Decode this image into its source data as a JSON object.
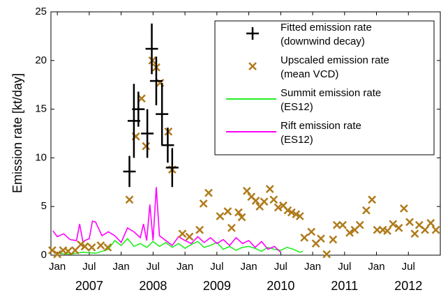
{
  "chart_data": {
    "type": "emission-timeseries",
    "ylabel": "Emission rate [kt/day]",
    "xlim": [
      2006.9,
      2013.0
    ],
    "ylim": [
      0,
      25
    ],
    "yticks": [
      0,
      5,
      10,
      15,
      20,
      25
    ],
    "xticks": [
      {
        "value": 2007.0,
        "label": "Jan"
      },
      {
        "value": 2007.5,
        "label": "Jul"
      },
      {
        "value": 2008.0,
        "label": "Jan"
      },
      {
        "value": 2008.5,
        "label": "Jul"
      },
      {
        "value": 2009.0,
        "label": "Jan"
      },
      {
        "value": 2009.5,
        "label": "Jul"
      },
      {
        "value": 2010.0,
        "label": "Jan"
      },
      {
        "value": 2010.5,
        "label": "Jul"
      },
      {
        "value": 2011.0,
        "label": "Jan"
      },
      {
        "value": 2011.5,
        "label": "Jul"
      },
      {
        "value": 2012.0,
        "label": "Jan"
      },
      {
        "value": 2012.5,
        "label": "Jul"
      }
    ],
    "year_labels": [
      {
        "value": 2007.5,
        "label": "2007"
      },
      {
        "value": 2008.5,
        "label": "2008"
      },
      {
        "value": 2009.5,
        "label": "2009"
      },
      {
        "value": 2010.5,
        "label": "2010"
      },
      {
        "value": 2011.5,
        "label": "2011"
      },
      {
        "value": 2012.5,
        "label": "2012"
      }
    ],
    "series": [
      {
        "name": "Fitted emission rate (downwind decay)",
        "kind": "errorbar",
        "color": "#000000",
        "x": [
          2008.13,
          2008.2,
          2008.27,
          2008.41,
          2008.48,
          2008.55,
          2008.64,
          2008.73,
          2008.8
        ],
        "values": [
          8.6,
          13.8,
          15.0,
          12.5,
          21.2,
          17.9,
          14.5,
          11.3,
          9.0
        ],
        "errors": [
          1.6,
          3.8,
          1.8,
          2.5,
          2.6,
          2.5,
          3.2,
          1.8,
          2.0
        ]
      },
      {
        "name": "Upscaled emission rate (mean VCD)",
        "kind": "cross",
        "color": "#b07a1a",
        "x": [
          2006.92,
          2007.0,
          2007.09,
          2007.17,
          2007.28,
          2007.37,
          2007.43,
          2007.54,
          2007.68,
          2007.79,
          2008.13,
          2008.23,
          2008.32,
          2008.39,
          2008.49,
          2008.55,
          2008.61,
          2008.74,
          2008.8,
          2008.96,
          2009.07,
          2009.23,
          2009.29,
          2009.37,
          2009.55,
          2009.67,
          2009.73,
          2009.84,
          2009.89,
          2009.97,
          2010.04,
          2010.11,
          2010.17,
          2010.24,
          2010.33,
          2010.39,
          2010.46,
          2010.54,
          2010.61,
          2010.67,
          2010.74,
          2010.8,
          2010.87,
          2010.98,
          2011.05,
          2011.13,
          2011.22,
          2011.32,
          2011.38,
          2011.47,
          2011.58,
          2011.66,
          2011.74,
          2011.84,
          2011.93,
          2012.01,
          2012.1,
          2012.17,
          2012.26,
          2012.35,
          2012.43,
          2012.52,
          2012.6,
          2012.67,
          2012.76,
          2012.85,
          2012.93
        ],
        "values": [
          0.5,
          0.1,
          0.5,
          0.4,
          0.5,
          1.1,
          0.9,
          0.8,
          1.0,
          0.8,
          5.7,
          12.2,
          16.1,
          11.2,
          20.0,
          19.3,
          17.7,
          12.7,
          8.8,
          2.2,
          1.9,
          2.6,
          5.3,
          6.4,
          4.0,
          4.5,
          2.8,
          4.4,
          3.9,
          6.6,
          6.0,
          5.6,
          5.0,
          5.5,
          6.8,
          5.7,
          4.9,
          5.1,
          4.6,
          4.4,
          4.2,
          4.0,
          1.8,
          2.4,
          1.2,
          1.7,
          0.1,
          1.6,
          3.1,
          3.1,
          2.3,
          2.6,
          3.1,
          4.6,
          5.7,
          2.6,
          2.6,
          2.5,
          3.2,
          2.8,
          4.8,
          3.4,
          2.2,
          3.1,
          2.6,
          3.3,
          2.6
        ]
      },
      {
        "name": "Summit emission rate (ES12)",
        "kind": "line",
        "color": "#22ee22",
        "x": [
          2007.0,
          2007.2,
          2007.4,
          2007.6,
          2007.8,
          2007.9,
          2008.0,
          2008.1,
          2008.2,
          2008.3,
          2008.4,
          2008.5,
          2008.6,
          2008.7,
          2008.8,
          2008.9,
          2009.0,
          2009.1,
          2009.2,
          2009.3,
          2009.4,
          2009.5,
          2009.6,
          2009.7,
          2009.8,
          2009.9,
          2010.0,
          2010.1,
          2010.2,
          2010.3,
          2010.4,
          2010.5,
          2010.6,
          2010.7,
          2010.8,
          2010.85
        ],
        "values": [
          0.2,
          0.1,
          0.3,
          0.2,
          0.6,
          1.5,
          1.0,
          1.7,
          0.9,
          1.2,
          0.8,
          1.4,
          0.9,
          1.3,
          0.8,
          1.2,
          0.7,
          1.1,
          1.4,
          0.8,
          1.0,
          1.3,
          0.6,
          0.9,
          0.5,
          0.8,
          0.9,
          0.7,
          0.4,
          0.8,
          0.6,
          0.5,
          0.8,
          0.6,
          0.3,
          0.4
        ]
      },
      {
        "name": "Rift emission rate (ES12)",
        "kind": "line",
        "color": "#ff00ff",
        "x": [
          2006.93,
          2007.0,
          2007.1,
          2007.2,
          2007.3,
          2007.35,
          2007.4,
          2007.5,
          2007.55,
          2007.6,
          2007.7,
          2007.8,
          2007.9,
          2008.0,
          2008.1,
          2008.2,
          2008.3,
          2008.35,
          2008.4,
          2008.45,
          2008.5,
          2008.55,
          2008.6,
          2008.7,
          2008.8,
          2008.9,
          2009.0,
          2009.1,
          2009.2,
          2009.3,
          2009.4,
          2009.5,
          2009.6,
          2009.7,
          2009.8,
          2009.9,
          2010.0,
          2010.1,
          2010.2,
          2010.3,
          2010.4,
          2010.5
        ],
        "values": [
          2.5,
          1.9,
          2.2,
          1.6,
          1.5,
          3.2,
          1.4,
          1.7,
          3.5,
          3.4,
          2.0,
          2.4,
          2.0,
          1.3,
          2.8,
          2.4,
          1.8,
          3.2,
          1.5,
          5.2,
          1.5,
          7.0,
          2.0,
          1.5,
          1.0,
          1.9,
          1.5,
          1.2,
          1.9,
          1.3,
          1.8,
          1.2,
          1.6,
          1.0,
          1.8,
          1.2,
          1.5,
          0.8,
          1.4,
          0.6,
          0.9,
          0.3
        ]
      }
    ]
  }
}
